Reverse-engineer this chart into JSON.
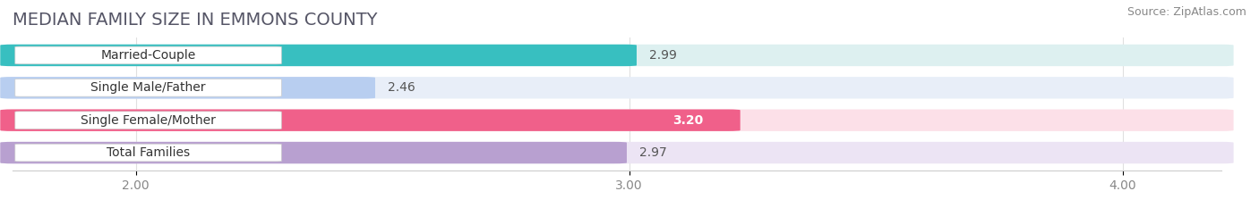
{
  "title": "MEDIAN FAMILY SIZE IN EMMONS COUNTY",
  "source": "Source: ZipAtlas.com",
  "categories": [
    "Married-Couple",
    "Single Male/Father",
    "Single Female/Mother",
    "Total Families"
  ],
  "values": [
    2.99,
    2.46,
    3.2,
    2.97
  ],
  "bar_colors": [
    "#38bfc0",
    "#b8cef0",
    "#f0608a",
    "#b8a0d0"
  ],
  "track_colors": [
    "#ddf0f0",
    "#e8eef8",
    "#fce0e8",
    "#ece4f4"
  ],
  "xlim_min": 1.75,
  "xlim_max": 4.2,
  "xticks": [
    2.0,
    3.0,
    4.0
  ],
  "xtick_labels": [
    "2.00",
    "3.00",
    "4.00"
  ],
  "bar_height": 0.62,
  "background_color": "#ffffff",
  "title_fontsize": 14,
  "source_fontsize": 9,
  "label_fontsize": 10,
  "value_fontsize": 10,
  "tick_fontsize": 10,
  "value_inside_bar": [
    false,
    false,
    true,
    false
  ],
  "value_labels": [
    "2.99",
    "2.46",
    "3.20",
    "2.97"
  ]
}
